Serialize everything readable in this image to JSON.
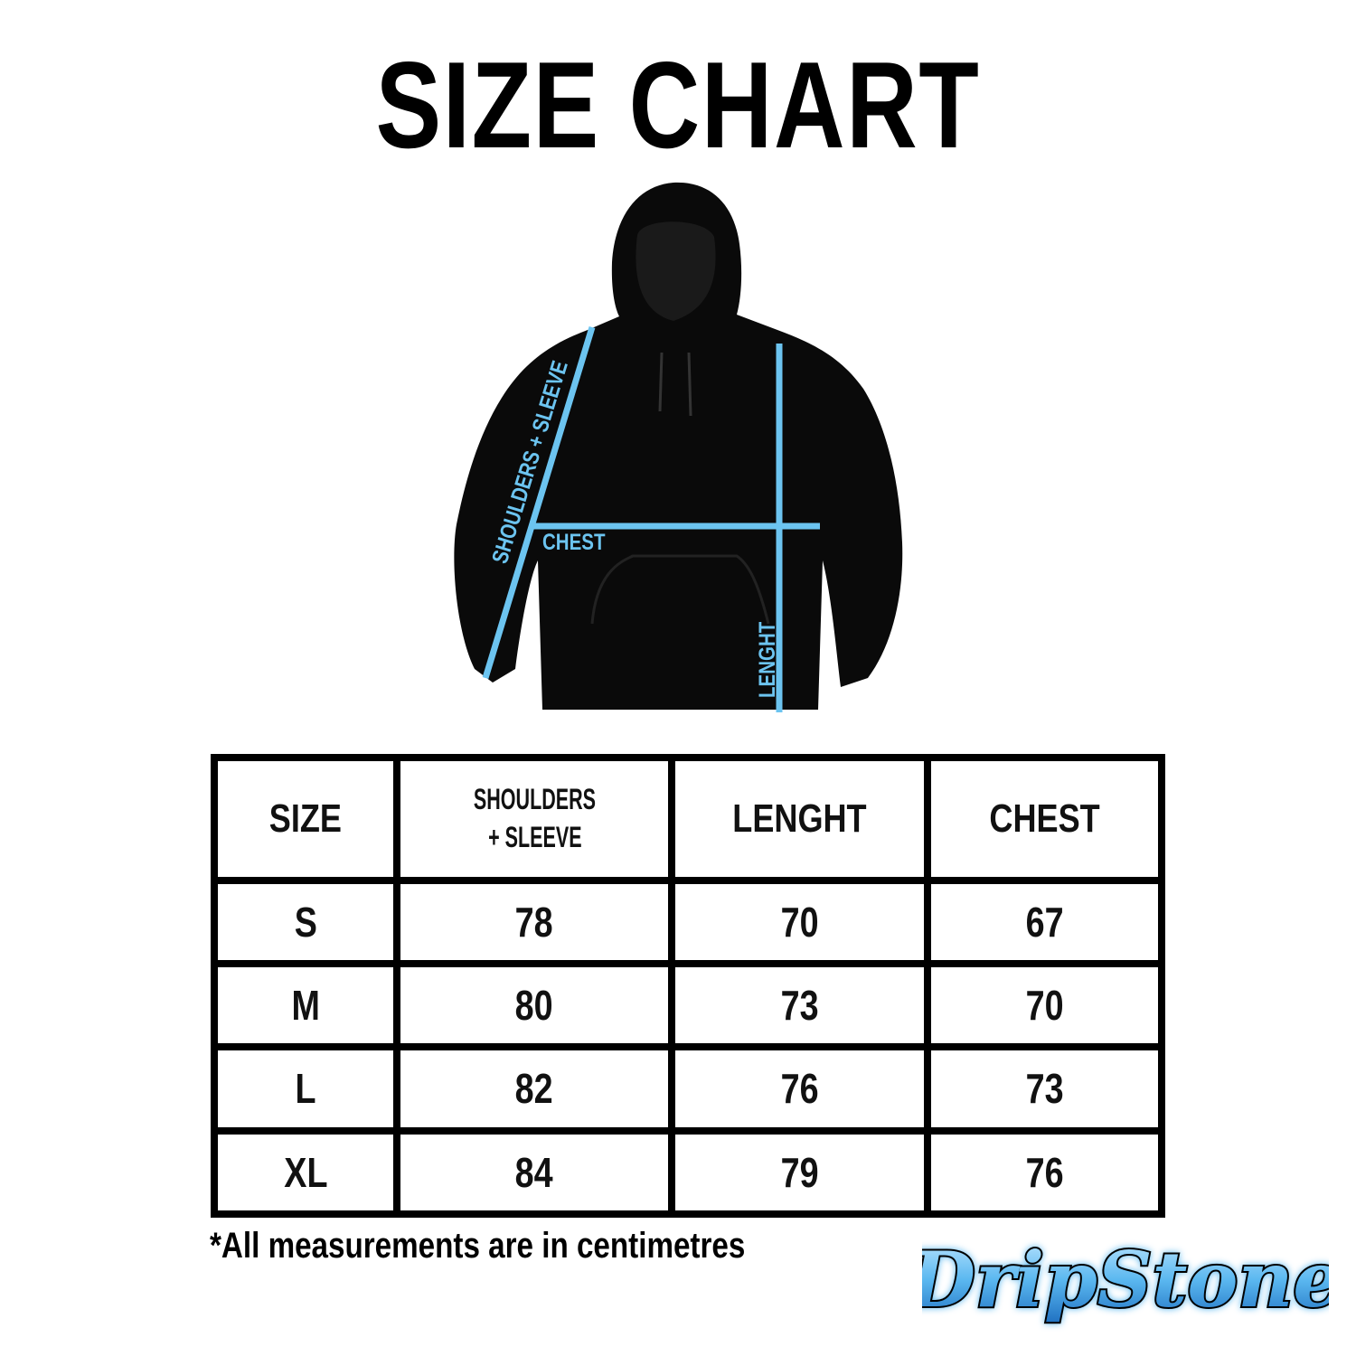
{
  "title": "SIZE CHART",
  "diagram": {
    "labels": {
      "shoulders_sleeve": "SHOULDERS + SLEEVE",
      "chest": "CHEST",
      "length": "LENGHT"
    },
    "line_color": "#6cc4f0",
    "garment_color": "#0a0a0a"
  },
  "table": {
    "headers": [
      "SIZE",
      "SHOULDERS",
      "+ SLEEVE",
      "LENGHT",
      "CHEST"
    ],
    "rows": [
      {
        "size": "S",
        "shoulders_sleeve": "78",
        "length": "70",
        "chest": "67"
      },
      {
        "size": "M",
        "shoulders_sleeve": "80",
        "length": "73",
        "chest": "70"
      },
      {
        "size": "L",
        "shoulders_sleeve": "82",
        "length": "76",
        "chest": "73"
      },
      {
        "size": "XL",
        "shoulders_sleeve": "84",
        "length": "79",
        "chest": "76"
      }
    ]
  },
  "note": "*All measurements are in centimetres",
  "logo": {
    "text": "DripStone",
    "colors": [
      "#5bb8f0",
      "#1e6fc0",
      "#000000"
    ]
  }
}
